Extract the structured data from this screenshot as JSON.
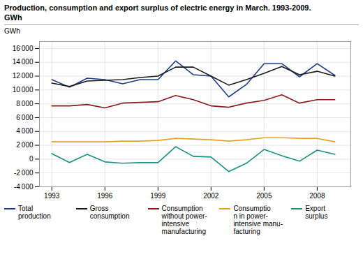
{
  "chart_data": {
    "type": "line",
    "title": "Production, consumption and export surplus of electric energy in March. 1993-2009.",
    "subtitle": "GWh",
    "ylabel": "GWh",
    "x": [
      1993,
      1994,
      1995,
      1996,
      1997,
      1998,
      1999,
      2000,
      2001,
      2002,
      2003,
      2004,
      2005,
      2006,
      2007,
      2008,
      2009
    ],
    "series": [
      {
        "name": "Total\nproduction",
        "color": "#1a3a8a",
        "values": [
          11500,
          10400,
          11700,
          11500,
          10900,
          11500,
          11500,
          14200,
          12200,
          12000,
          9000,
          10800,
          13800,
          13800,
          11900,
          13800,
          12100
        ]
      },
      {
        "name": "Gross\nconsumption",
        "color": "#1a1a1a",
        "values": [
          11000,
          10500,
          11300,
          11400,
          11500,
          11800,
          12000,
          13300,
          13300,
          12000,
          10700,
          11500,
          12400,
          13400,
          12200,
          12700,
          12000
        ]
      },
      {
        "name": "Consumption\nwithout power-\nintensive\nmanufacturing",
        "color": "#8b1a1a",
        "values": [
          7700,
          7700,
          7900,
          7400,
          8100,
          8200,
          8300,
          9200,
          8600,
          7700,
          7500,
          8100,
          8500,
          9300,
          8100,
          8600,
          8600
        ]
      },
      {
        "name": "Consumptio\nn in power-\nintensive manu-\nfacturing",
        "color": "#e8a020",
        "values": [
          2500,
          2500,
          2500,
          2500,
          2600,
          2600,
          2700,
          3000,
          2900,
          2800,
          2600,
          2800,
          3100,
          3100,
          3000,
          3000,
          2500
        ]
      },
      {
        "name": "Export\nsurplus",
        "color": "#1a9080",
        "values": [
          800,
          -500,
          700,
          -400,
          -600,
          -500,
          -500,
          1800,
          400,
          300,
          -1800,
          -600,
          1400,
          500,
          -300,
          1300,
          700
        ]
      }
    ],
    "xlim": [
      1992.3,
      2009.9
    ],
    "xticks": [
      1993,
      1996,
      1999,
      2002,
      2005,
      2008
    ],
    "ylim": [
      -4000,
      17000
    ],
    "yticks": [
      {
        "value": -4000,
        "label": "-4 000"
      },
      {
        "value": -2000,
        "label": "-2 000"
      },
      0,
      {
        "value": 2000,
        "label": "2 000"
      },
      {
        "value": 4000,
        "label": "4 000"
      },
      {
        "value": 6000,
        "label": "6 000"
      },
      {
        "value": 8000,
        "label": "8 000"
      },
      {
        "value": 10000,
        "label": "10 000"
      },
      {
        "value": 12000,
        "label": "12 000"
      },
      {
        "value": 14000,
        "label": "14 000"
      },
      {
        "value": 16000,
        "label": "16 000"
      }
    ],
    "grid": true,
    "legend": "bottom"
  }
}
